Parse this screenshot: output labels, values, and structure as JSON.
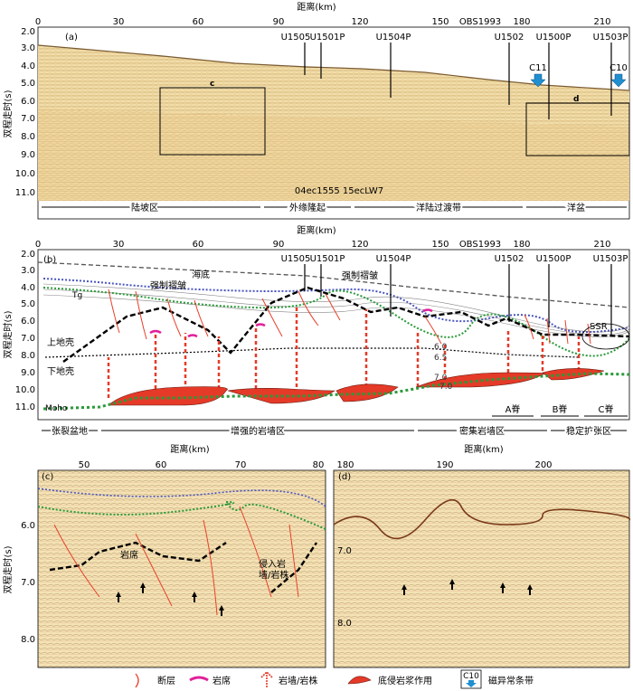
{
  "panel_a": {
    "label": "(a)",
    "x_axis_title": "距离(km)",
    "x_ticks": [
      "0",
      "30",
      "60",
      "90",
      "120",
      "150",
      "180",
      "210"
    ],
    "y_axis_title": "双程走时(s)",
    "y_ticks": [
      "2.0",
      "3.0",
      "4.0",
      "5.0",
      "6.0",
      "7.0",
      "8.0",
      "9.0",
      "10.0",
      "11.0"
    ],
    "obs": "OBS1993",
    "wells": [
      "U1505",
      "U1501P",
      "U1504P",
      "U1502",
      "U1500P",
      "U1503P"
    ],
    "magnetic": [
      "C11",
      "C10"
    ],
    "box_labels": [
      "c",
      "d"
    ],
    "profiles": "04ec1555  15ecLW7",
    "zones": [
      "陆坡区",
      "外缘隆起",
      "洋陆过渡带",
      "洋盆"
    ]
  },
  "panel_b": {
    "label": "(b)",
    "x_axis_title": "距离(km)",
    "x_ticks": [
      "0",
      "30",
      "60",
      "90",
      "120",
      "150",
      "180",
      "210"
    ],
    "y_axis_title": "双程走时(s)",
    "y_ticks": [
      "2.0",
      "3.0",
      "4.0",
      "5.0",
      "6.0",
      "7.0",
      "8.0",
      "9.0",
      "10.0",
      "11.0"
    ],
    "obs": "OBS1993",
    "wells": [
      "U1505",
      "U1501P",
      "U1504P",
      "U1502",
      "U1500P",
      "U1503P"
    ],
    "labels": {
      "seafloor": "海底",
      "fold1": "强制褶皱",
      "fold2": "强制褶皱",
      "tg": "Tg",
      "upper_crust": "上地壳",
      "lower_crust": "下地壳",
      "moho": "Moho",
      "ssr": "SSR",
      "v1": "6.0",
      "v2": "6.5",
      "v3": "7.0",
      "v4": "7.0"
    },
    "ridges": [
      "A脊",
      "B脊",
      "C脊"
    ],
    "zones": [
      "张裂盆地",
      "增强的岩墙区",
      "密集岩墙区",
      "稳定扩张区"
    ]
  },
  "panel_c": {
    "label": "(c)",
    "x_axis_title": "距离(km)",
    "x_ticks": [
      "50",
      "60",
      "70",
      "80"
    ],
    "y_axis_title": "双程走时(s)",
    "y_ticks": [
      "6.0",
      "7.0",
      "8.0"
    ],
    "sill_label": "岩席",
    "intrusion_label_1": "侵入岩",
    "intrusion_label_2": "墙/岩株"
  },
  "panel_d": {
    "label": "(d)",
    "x_axis_title": "距离(km)",
    "x_ticks": [
      "180",
      "190",
      "200"
    ],
    "y_ticks": [
      "7.0",
      "8.0"
    ]
  },
  "legend": [
    {
      "key": "fault",
      "label": "断层"
    },
    {
      "key": "sill",
      "label": "岩席"
    },
    {
      "key": "dike",
      "label": "岩墙/岩株"
    },
    {
      "key": "underplate",
      "label": "底侵岩浆作用"
    },
    {
      "key": "magnetic",
      "label": "磁异常条带",
      "tag": "C10"
    }
  ],
  "colors": {
    "seismic_bg": "#f1dca6",
    "fault": "#e8402a",
    "sill": "#e0209a",
    "magma": "#e53a28",
    "green_dots": "#2a9a3a",
    "blue_dots": "#4a55c0",
    "arrow_blue": "#1f8fd0"
  }
}
